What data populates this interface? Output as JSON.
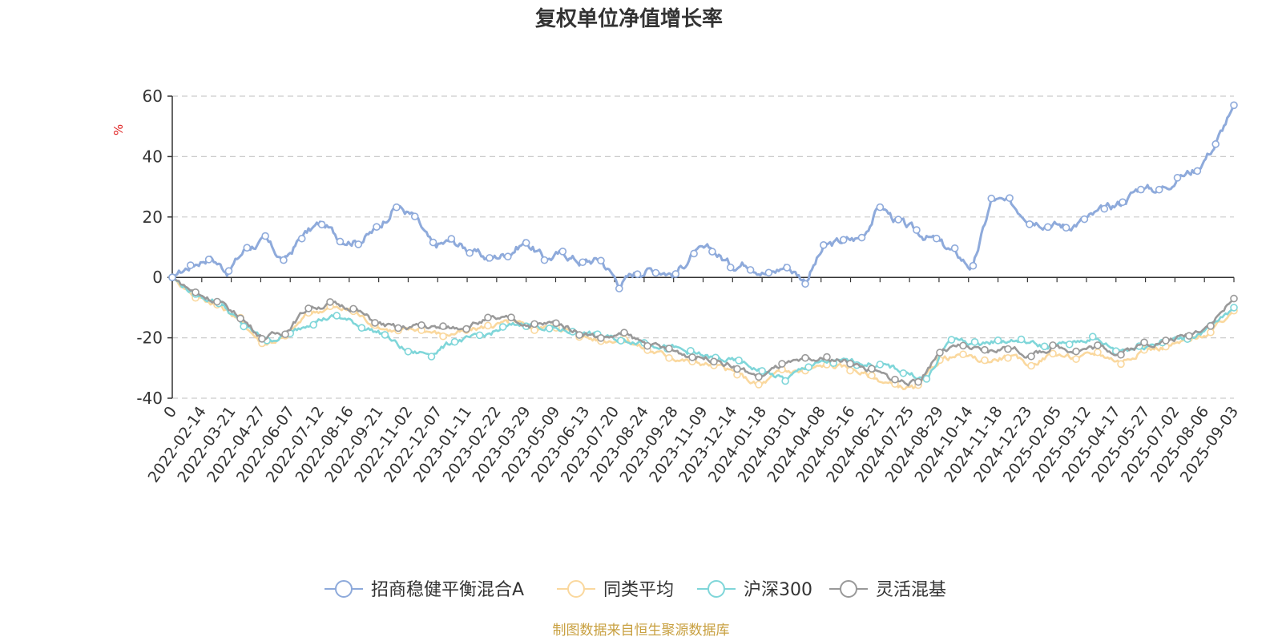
{
  "chart_data": {
    "type": "line",
    "title": "复权单位净值增长率",
    "ylabel": "%",
    "ylim": [
      -40,
      60
    ],
    "yticks": [
      60,
      40,
      20,
      0,
      -20,
      -40
    ],
    "grid": true,
    "legend_position": "bottom",
    "x_tick_labels": [
      "0",
      "2022-02-14",
      "2022-03-21",
      "2022-04-27",
      "2022-06-07",
      "2022-07-12",
      "2022-08-16",
      "2022-09-21",
      "2022-11-02",
      "2022-12-07",
      "2023-01-11",
      "2023-02-22",
      "2023-03-29",
      "2023-05-09",
      "2023-06-13",
      "2023-07-20",
      "2023-08-24",
      "2023-09-28",
      "2023-11-09",
      "2023-12-14",
      "2024-01-18",
      "2024-03-01",
      "2024-04-08",
      "2024-05-16",
      "2024-06-21",
      "2024-07-25",
      "2024-08-29",
      "2024-10-14",
      "2024-11-18",
      "2024-12-23",
      "2025-02-05",
      "2025-03-12",
      "2025-04-17",
      "2025-05-27",
      "2025-07-02",
      "2025-08-06",
      "2025-09-03"
    ],
    "series": [
      {
        "name": "招商稳健平衡混合A",
        "color": "#8eaadb",
        "values": [
          0,
          4,
          7,
          2,
          10,
          12,
          5,
          14,
          18,
          13,
          12,
          16,
          24,
          20,
          10,
          12,
          9,
          6,
          8,
          12,
          6,
          8,
          5,
          6,
          -2,
          2,
          3,
          1,
          8,
          9,
          4,
          5,
          1,
          4,
          -1,
          10,
          12,
          13,
          24,
          18,
          15,
          12,
          8,
          3,
          26,
          24,
          20,
          18,
          17,
          19,
          22,
          25,
          30,
          29,
          33,
          36,
          44,
          57
        ]
      },
      {
        "name": "同类平均",
        "color": "#fad89e",
        "values": [
          0,
          -6,
          -9,
          -14,
          -22,
          -20,
          -12,
          -10,
          -11,
          -16,
          -18,
          -17,
          -19,
          -18,
          -16,
          -15,
          -17,
          -16,
          -19,
          -21,
          -20,
          -24,
          -26,
          -28,
          -29,
          -32,
          -36,
          -31,
          -31,
          -29,
          -30,
          -33,
          -36,
          -37,
          -27,
          -26,
          -28,
          -26,
          -29,
          -25,
          -27,
          -25,
          -28,
          -24,
          -23,
          -21,
          -18,
          -11
        ]
      },
      {
        "name": "沪深300",
        "color": "#7fd6d9",
        "values": [
          0,
          -6,
          -8,
          -16,
          -21,
          -19,
          -14,
          -13,
          -16,
          -19,
          -25,
          -25,
          -21,
          -20,
          -17,
          -15,
          -17,
          -18,
          -19,
          -21,
          -21,
          -23,
          -25,
          -27,
          -28,
          -31,
          -34,
          -29,
          -28,
          -28,
          -29,
          -31,
          -34,
          -20,
          -22,
          -21,
          -21,
          -23,
          -22,
          -20,
          -24,
          -23,
          -21,
          -20,
          -17,
          -10
        ]
      },
      {
        "name": "灵活混基",
        "color": "#999999",
        "values": [
          0,
          -5,
          -8,
          -13,
          -20,
          -18,
          -10,
          -9,
          -10,
          -15,
          -17,
          -16,
          -17,
          -16,
          -14,
          -14,
          -16,
          -15,
          -18,
          -20,
          -19,
          -22,
          -24,
          -26,
          -27,
          -30,
          -33,
          -29,
          -28,
          -27,
          -28,
          -31,
          -34,
          -35,
          -24,
          -23,
          -25,
          -23,
          -26,
          -23,
          -24,
          -23,
          -25,
          -22,
          -21,
          -19,
          -15,
          -7
        ]
      }
    ]
  },
  "legend": {
    "item_0": "招商稳健平衡混合A",
    "item_1": "同类平均",
    "item_2": "沪深300",
    "item_3": "灵活混基"
  },
  "source_note": "制图数据来自恒生聚源数据库"
}
